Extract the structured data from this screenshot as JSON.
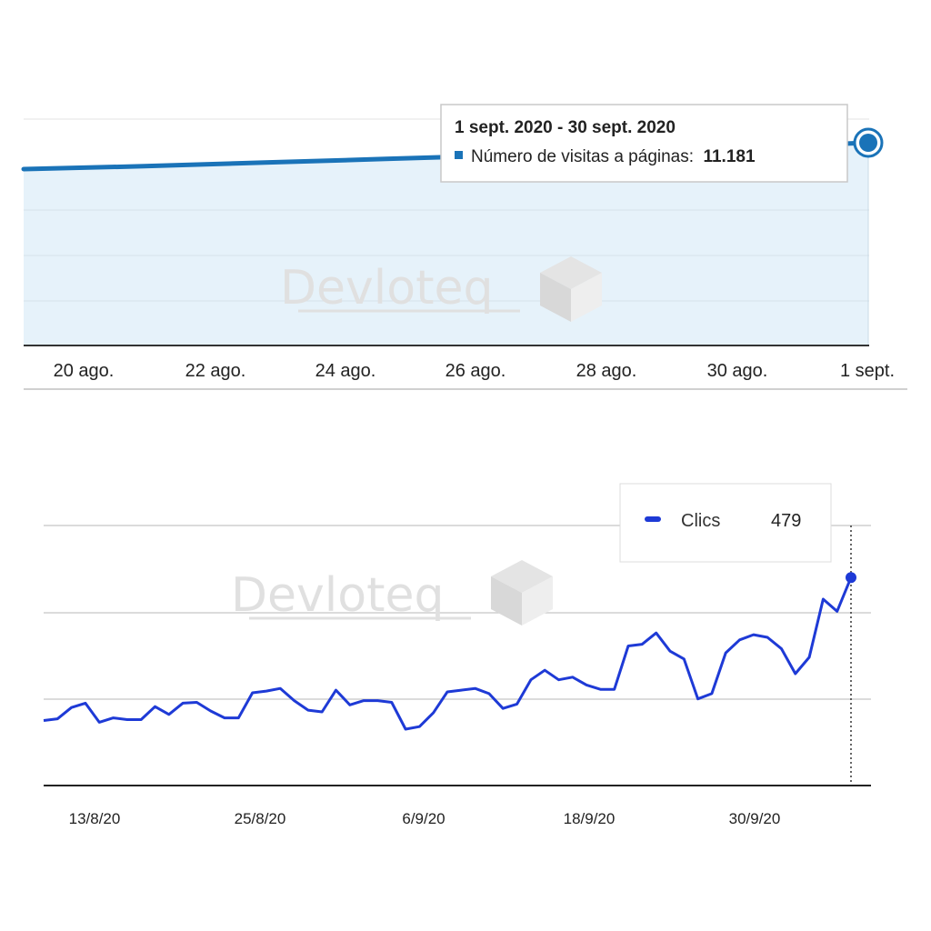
{
  "watermark": {
    "text": "Devloteq"
  },
  "chart_data": [
    {
      "type": "area",
      "x_ticks": [
        "20 ago.",
        "22 ago.",
        "24 ago.",
        "26 ago.",
        "28 ago.",
        "30 ago.",
        "1 sept."
      ],
      "series": [
        {
          "values": [
            11000,
            11020,
            11045,
            11070,
            11095,
            11120,
            11150,
            11181
          ]
        }
      ],
      "tooltip": {
        "title": "1 sept. 2020 - 30 sept. 2020",
        "metric": "Número de visitas a páginas:",
        "value": "11.181"
      },
      "colors": {
        "line": "#1a73b8",
        "fill": "#e6f2fa"
      },
      "grid": true
    },
    {
      "type": "line",
      "x_ticks": [
        "13/8/20",
        "25/8/20",
        "6/9/20",
        "18/9/20",
        "30/9/20"
      ],
      "series": [
        {
          "name": "Clics",
          "values": [
            75,
            77,
            90,
            95,
            73,
            78,
            76,
            76,
            91,
            82,
            95,
            96,
            86,
            78,
            78,
            107,
            109,
            112,
            98,
            87,
            85,
            110,
            93,
            98,
            98,
            96,
            65,
            68,
            84,
            108,
            110,
            112,
            106,
            89,
            94,
            122,
            133,
            122,
            125,
            116,
            111,
            111,
            161,
            163,
            176,
            155,
            146,
            100,
            106,
            153,
            168,
            174,
            171,
            158,
            129,
            148,
            215,
            201,
            240
          ]
        }
      ],
      "legend": {
        "label": "Clics",
        "value": "479"
      },
      "colors": {
        "line": "#1e3ad6"
      },
      "grid": true
    }
  ]
}
